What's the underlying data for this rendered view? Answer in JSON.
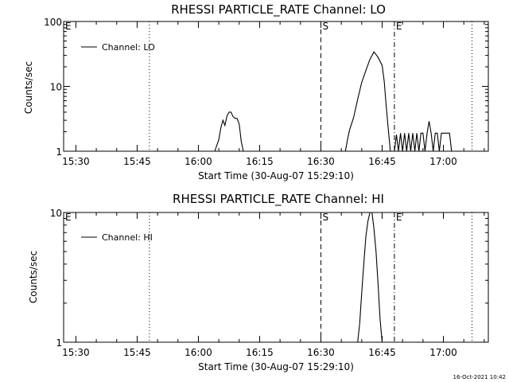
{
  "chart_data": [
    {
      "type": "line",
      "title": "RHESSI PARTICLE_RATE Channel: LO",
      "xlabel": "Start Time (30-Aug-07 15:29:10)",
      "ylabel": "Counts/sec",
      "yscale": "log",
      "ylim": [
        1,
        100
      ],
      "ytick_labels": [
        "1",
        "10",
        "100"
      ],
      "ytick_values": [
        1,
        10,
        100
      ],
      "xlim": [
        "15:27",
        "17:11"
      ],
      "xtick_labels": [
        "15:30",
        "15:45",
        "16:00",
        "16:15",
        "16:30",
        "16:45",
        "17:00"
      ],
      "xtick_values": [
        "15:30",
        "15:45",
        "16:00",
        "16:15",
        "16:30",
        "16:45",
        "17:00"
      ],
      "legend": "Channel: LO",
      "legend_position": "top-left",
      "markers": [
        {
          "label": "E",
          "time": "15:27",
          "style": "none"
        },
        {
          "label": "",
          "time": "15:48",
          "style": "dotted"
        },
        {
          "label": "S",
          "time": "16:30",
          "style": "dashed"
        },
        {
          "label": "E",
          "time": "16:48",
          "style": "dashdot"
        },
        {
          "label": "",
          "time": "17:07",
          "style": "dotted"
        }
      ],
      "series": [
        {
          "name": "Channel: LO",
          "segments": [
            [
              [
                "16:04",
                1
              ],
              [
                "16:05",
                1.5
              ],
              [
                "16:05.5",
                2.3
              ],
              [
                "16:06",
                3
              ],
              [
                "16:06.5",
                2.5
              ],
              [
                "16:07",
                3.5
              ],
              [
                "16:07.5",
                4
              ],
              [
                "16:08",
                4
              ],
              [
                "16:08.5",
                3.4
              ],
              [
                "16:09",
                3.2
              ],
              [
                "16:09.5",
                3.2
              ],
              [
                "16:10",
                2.6
              ],
              [
                "16:10.5",
                1.4
              ],
              [
                "16:11",
                1
              ]
            ],
            [
              [
                "16:36",
                1
              ],
              [
                "16:36.5",
                1.5
              ],
              [
                "16:37",
                2.1
              ],
              [
                "16:38",
                3.3
              ],
              [
                "16:39",
                6.3
              ],
              [
                "16:40",
                11.5
              ],
              [
                "16:41",
                17.5
              ],
              [
                "16:42",
                26
              ],
              [
                "16:43",
                34
              ],
              [
                "16:44",
                28
              ],
              [
                "16:45",
                21
              ],
              [
                "16:45.5",
                12
              ],
              [
                "16:46",
                5
              ],
              [
                "16:46.5",
                2.2
              ],
              [
                "16:47",
                1
              ]
            ],
            [
              [
                "16:48",
                1
              ],
              [
                "16:48.5",
                1.8
              ],
              [
                "16:49",
                1
              ],
              [
                "16:49.5",
                1.9
              ],
              [
                "16:50",
                1
              ],
              [
                "16:50.5",
                1.9
              ],
              [
                "16:51",
                1
              ],
              [
                "16:51.5",
                1.9
              ],
              [
                "16:52",
                1
              ],
              [
                "16:52.5",
                1.9
              ],
              [
                "16:53",
                1
              ],
              [
                "16:53.5",
                1.9
              ],
              [
                "16:54",
                1
              ],
              [
                "16:54.5",
                1.9
              ],
              [
                "16:55",
                1.9
              ],
              [
                "16:55.5",
                1
              ],
              [
                "16:56",
                1.9
              ],
              [
                "16:56.5",
                2.9
              ],
              [
                "16:57",
                1.9
              ],
              [
                "16:57.5",
                1
              ],
              [
                "16:58",
                1.9
              ],
              [
                "16:58.5",
                1.9
              ],
              [
                "16:59",
                1
              ],
              [
                "16:59.5",
                1.9
              ],
              [
                "17:00",
                1.9
              ],
              [
                "17:00.5",
                1.9
              ],
              [
                "17:01",
                1.9
              ],
              [
                "17:01.5",
                1.9
              ],
              [
                "17:02",
                1
              ]
            ]
          ]
        }
      ]
    },
    {
      "type": "line",
      "title": "RHESSI PARTICLE_RATE Channel: HI",
      "xlabel": "Start Time (30-Aug-07 15:29:10)",
      "ylabel": "Counts/sec",
      "yscale": "log",
      "ylim": [
        1,
        10
      ],
      "ytick_labels": [
        "1",
        "10"
      ],
      "ytick_values": [
        1,
        10
      ],
      "xlim": [
        "15:27",
        "17:11"
      ],
      "xtick_labels": [
        "15:30",
        "15:45",
        "16:00",
        "16:15",
        "16:30",
        "16:45",
        "17:00"
      ],
      "xtick_values": [
        "15:30",
        "15:45",
        "16:00",
        "16:15",
        "16:30",
        "16:45",
        "17:00"
      ],
      "legend": "Channel: HI",
      "legend_position": "top-left",
      "markers": [
        {
          "label": "E",
          "time": "15:27",
          "style": "none"
        },
        {
          "label": "",
          "time": "15:48",
          "style": "dotted"
        },
        {
          "label": "S",
          "time": "16:30",
          "style": "dashed"
        },
        {
          "label": "E",
          "time": "16:48",
          "style": "dashdot"
        },
        {
          "label": "",
          "time": "17:07",
          "style": "dotted"
        }
      ],
      "series": [
        {
          "name": "Channel: HI",
          "segments": [
            [
              [
                "16:39",
                1
              ],
              [
                "16:39.5",
                1.4
              ],
              [
                "16:40",
                2.4
              ],
              [
                "16:40.5",
                4
              ],
              [
                "16:41",
                6.5
              ],
              [
                "16:41.5",
                8.5
              ],
              [
                "16:42",
                10
              ],
              [
                "16:42.5",
                10
              ],
              [
                "16:43",
                7.5
              ],
              [
                "16:43.5",
                5
              ],
              [
                "16:44",
                2.8
              ],
              [
                "16:44.5",
                1.5
              ],
              [
                "16:45",
                1
              ]
            ]
          ]
        }
      ]
    }
  ],
  "timestamp": "16-Oct-2021 10:42"
}
